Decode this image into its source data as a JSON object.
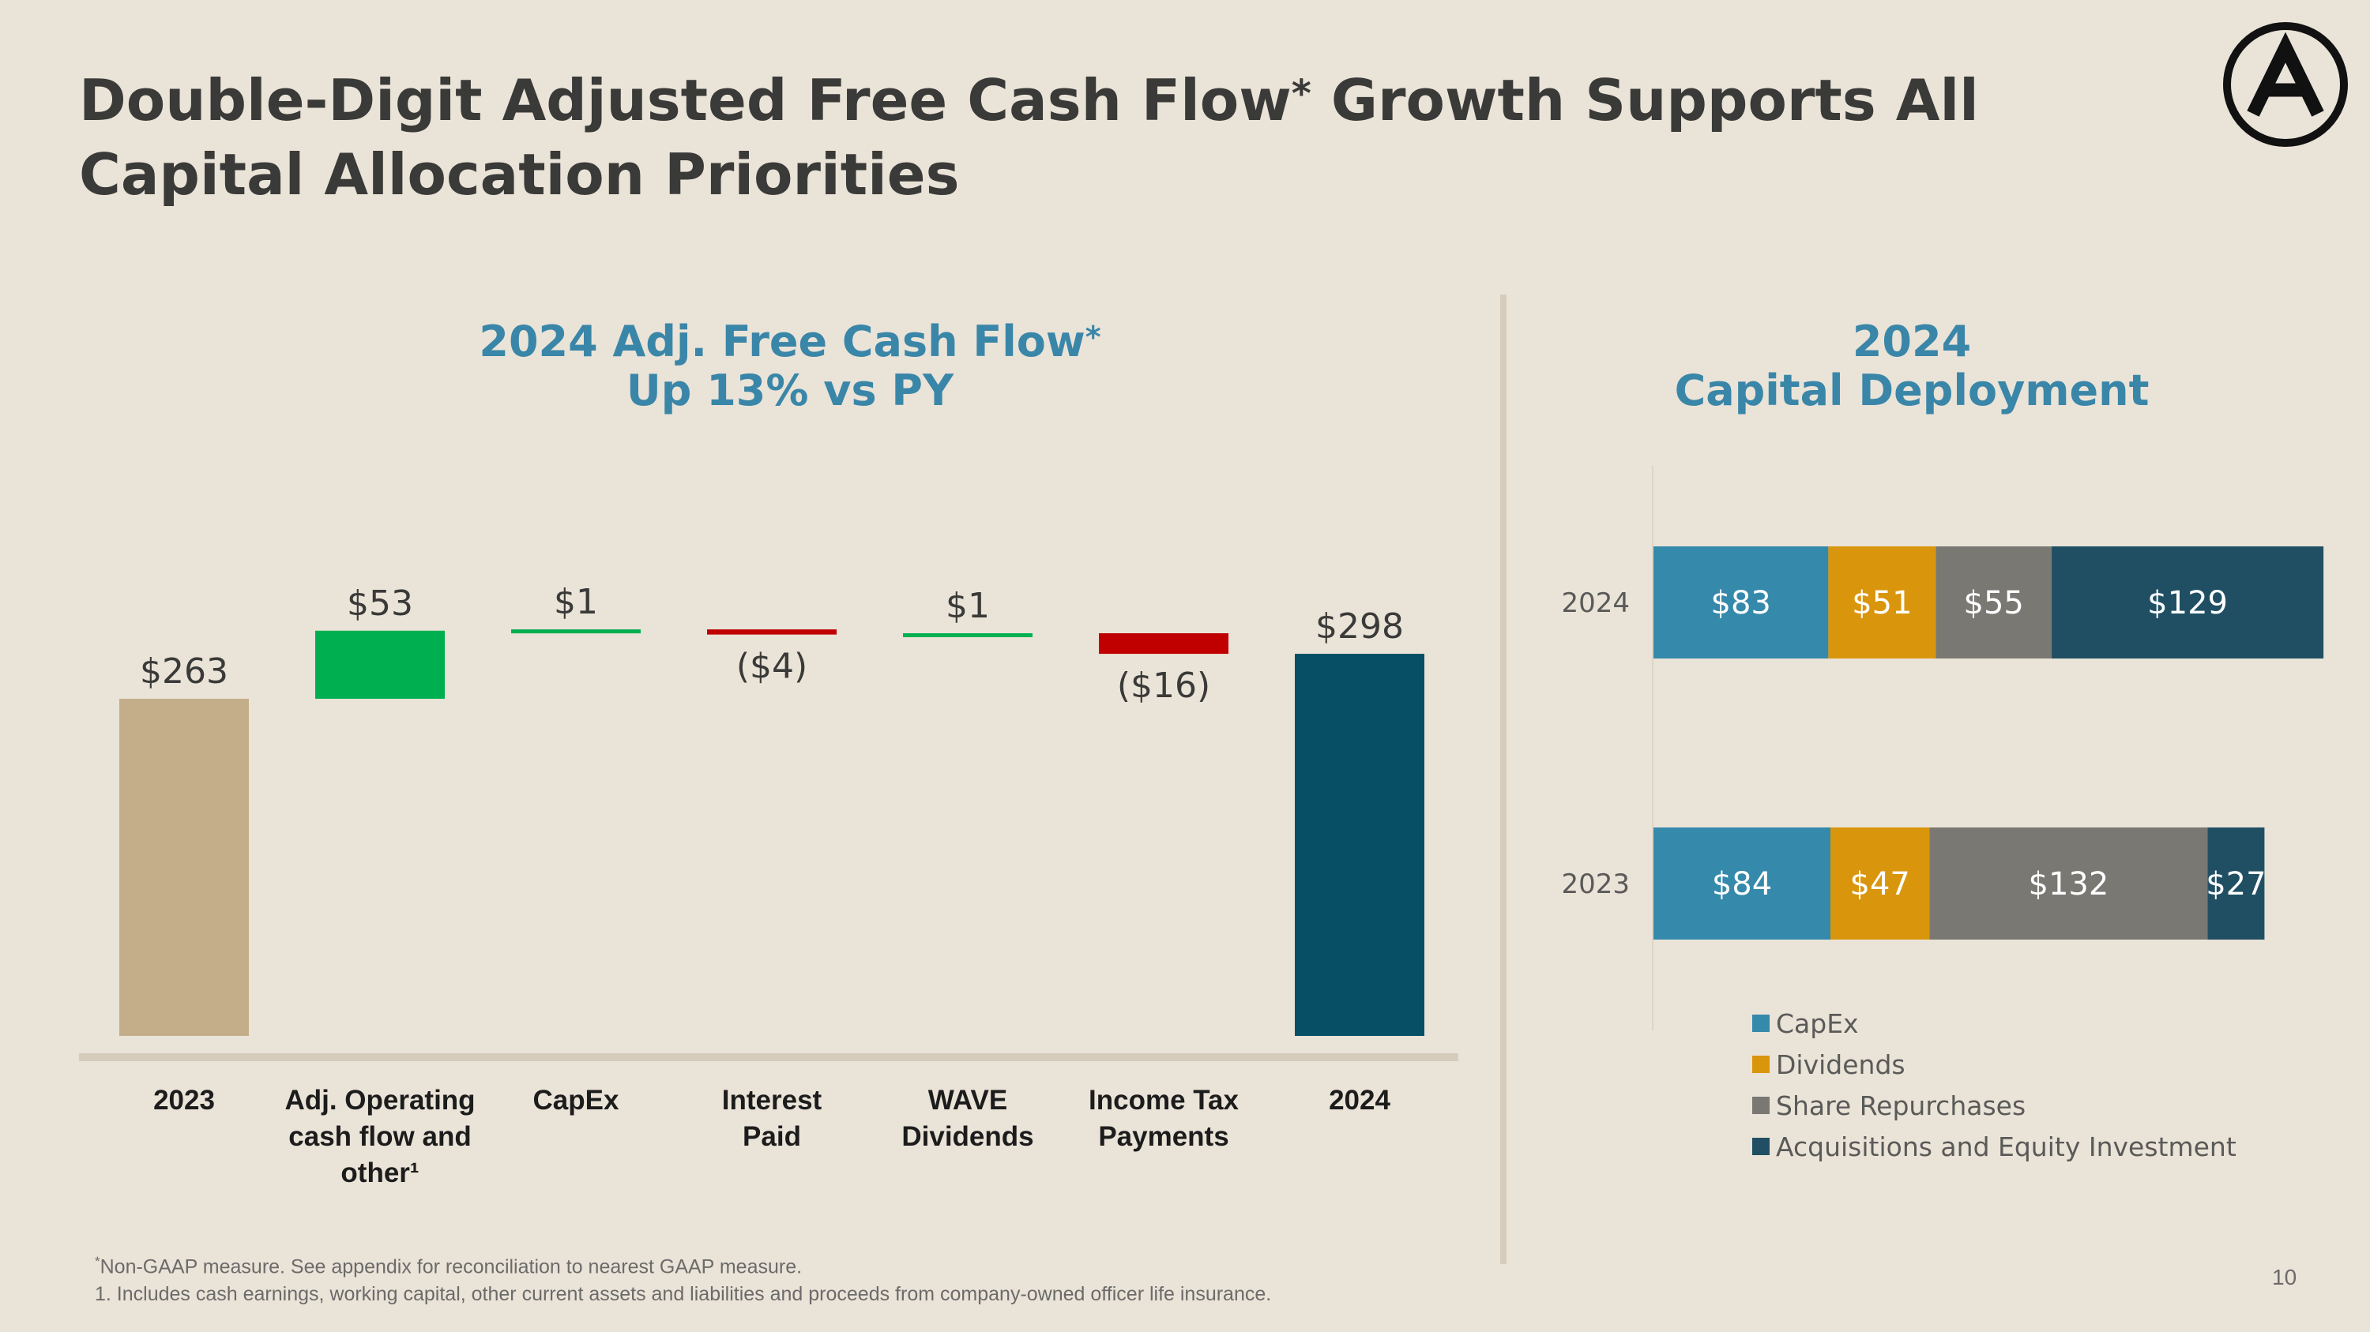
{
  "title": {
    "part1": "Double-Digit Adjusted Free Cash Flow",
    "marker": "*",
    "part2": " Growth Supports All Capital Allocation Priorities"
  },
  "logo": {
    "icon": "letter-a-circle-logo"
  },
  "waterfall": {
    "title_line1": "2024 Adj. Free Cash Flow",
    "title_marker": "*",
    "title_line2": "Up 13% vs PY"
  },
  "capital": {
    "title_line1": "2024",
    "title_line2": "Capital Deployment"
  },
  "chart_data": [
    {
      "type": "bar",
      "subtype": "waterfall",
      "title": "2024 Adj. Free Cash Flow* Up 13% vs PY",
      "categories": [
        [
          "2023"
        ],
        [
          "Adj. Operating",
          "cash flow and",
          "other¹"
        ],
        [
          "CapEx"
        ],
        [
          "Interest",
          "Paid"
        ],
        [
          "WAVE",
          "Dividends"
        ],
        [
          "Income Tax",
          "Payments"
        ],
        [
          "2024"
        ]
      ],
      "steps": [
        {
          "kind": "total",
          "value": 263,
          "label": "$263",
          "color": "#C4AE8A"
        },
        {
          "kind": "delta",
          "value": 53,
          "label": "$53",
          "color": "#00B050"
        },
        {
          "kind": "delta",
          "value": 1,
          "label": "$1",
          "color": "#00B050"
        },
        {
          "kind": "delta",
          "value": -4,
          "label": "($4)",
          "color": "#C00000"
        },
        {
          "kind": "delta",
          "value": 1,
          "label": "$1",
          "color": "#00B050"
        },
        {
          "kind": "delta",
          "value": -16,
          "label": "($16)",
          "color": "#C00000"
        },
        {
          "kind": "total",
          "value": 298,
          "label": "$298",
          "color": "#064F64"
        }
      ],
      "baseline_color": "#D6CCBC"
    },
    {
      "type": "bar",
      "subtype": "stacked-horizontal",
      "title": "2024 Capital Deployment",
      "categories": [
        "2024",
        "2023"
      ],
      "series": [
        {
          "name": "CapEx",
          "color": "#3589AB",
          "values": [
            83,
            84
          ],
          "labels": [
            "$83",
            "$84"
          ]
        },
        {
          "name": "Dividends",
          "color": "#D9960C",
          "values": [
            51,
            47
          ],
          "labels": [
            "$51",
            "$47"
          ]
        },
        {
          "name": "Share Repurchases",
          "color": "#7A7873",
          "values": [
            55,
            132
          ],
          "labels": [
            "$55",
            "$132"
          ]
        },
        {
          "name": "Acquisitions and Equity Investment",
          "color": "#204F64",
          "values": [
            129,
            27
          ],
          "labels": [
            "$129",
            "$27"
          ]
        }
      ],
      "legend": "bottom"
    }
  ],
  "footnotes": {
    "line1_marker": "*",
    "line1": "Non-GAAP measure. See appendix for reconciliation to nearest GAAP measure.",
    "line2": "1. Includes cash earnings, working capital, other current assets and liabilities and proceeds from company-owned officer life insurance."
  },
  "page_number": "10"
}
